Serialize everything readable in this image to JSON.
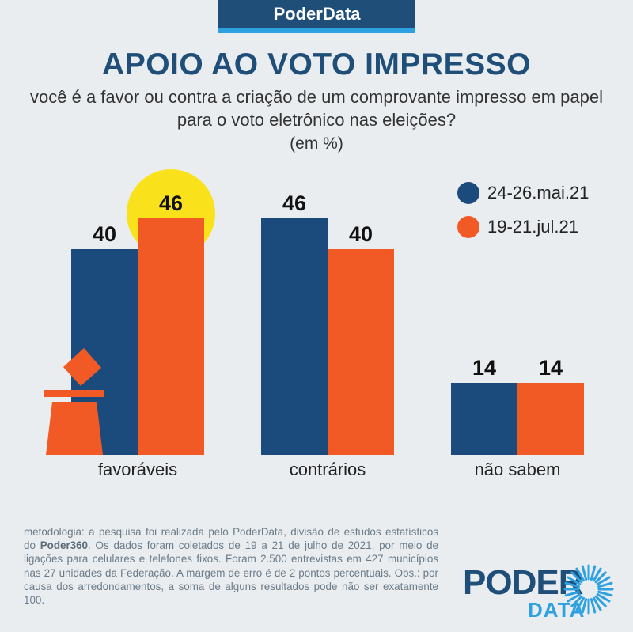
{
  "brand": "PoderData",
  "title": "APOIO AO VOTO IMPRESSO",
  "subtitle": "você é a favor ou contra a criação de um comprovante impresso em papel para o voto eletrônico nas eleições?",
  "unit": "(em %)",
  "colors": {
    "series1": "#1a4b7c",
    "series2": "#f25a25",
    "highlight": "#f9e21b",
    "brand": "#1f4e79",
    "accent": "#2ea1e0"
  },
  "legend": [
    {
      "label": "24-26.mai.21",
      "color": "#1a4b7c"
    },
    {
      "label": "19-21.jul.21",
      "color": "#f25a25"
    }
  ],
  "chart_data": {
    "type": "bar",
    "categories": [
      "favoráveis",
      "contrários",
      "não sabem"
    ],
    "series": [
      {
        "name": "24-26.mai.21",
        "values": [
          40,
          46,
          14
        ]
      },
      {
        "name": "19-21.jul.21",
        "values": [
          46,
          40,
          14
        ]
      }
    ],
    "ylim": [
      0,
      50
    ],
    "grid": false,
    "legend_position": "top-right",
    "highlight": {
      "category": "favoráveis",
      "series": "19-21.jul.21"
    }
  },
  "methodology": {
    "part1": "metodologia: a pesquisa foi realizada pelo PoderData, divisão de estudos estatísticos do ",
    "bold": "Poder360",
    "part2": ". Os dados foram coletados de 19 a 21 de julho de 2021, por meio de ligações para celulares e telefones fixos. Foram 2.500 entrevistas em 427 municípios nas 27 unidades da Federação. A margem de erro é de 2 pontos percentuais. Obs.: por causa dos arredondamentos, a soma de alguns resultados pode não ser exatamente 100."
  },
  "logo": {
    "word": "PODER",
    "sub": "DATA"
  },
  "icons": {
    "ballot": "ballot-box-icon",
    "sun": "sunburst-icon"
  }
}
